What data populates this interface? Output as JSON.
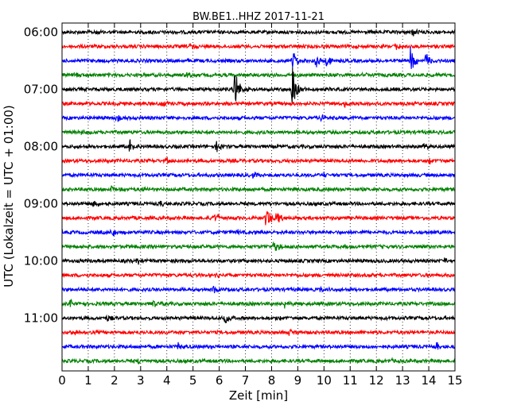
{
  "chart_data": {
    "type": "line",
    "title": "BW.BE1..HHZ 2017-11-21",
    "xlabel": "Zeit  [min]",
    "ylabel": "UTC (Lokalzeit = UTC + 01:00)",
    "xlim": [
      0,
      15
    ],
    "x_ticks": [
      "0",
      "1",
      "2",
      "3",
      "4",
      "5",
      "6",
      "7",
      "8",
      "9",
      "10",
      "11",
      "12",
      "13",
      "14",
      "15"
    ],
    "y_tick_labels": [
      "06:00",
      "07:00",
      "08:00",
      "09:00",
      "10:00",
      "11:00"
    ],
    "grid": "vertical dotted",
    "trace_colors": [
      "#000000",
      "#ff0000",
      "#0000ff",
      "#008000"
    ],
    "row_minutes": 15,
    "rows_per_tick": 4,
    "traces": [
      {
        "start": "06:00",
        "color": "#000000",
        "events": [
          {
            "t": 1.3,
            "amp": 0.25
          },
          {
            "t": 13.4,
            "amp": 0.35
          }
        ]
      },
      {
        "start": "06:15",
        "color": "#ff0000",
        "events": [
          {
            "t": 4.9,
            "amp": 0.25
          },
          {
            "t": 12.7,
            "amp": 0.3
          }
        ]
      },
      {
        "start": "06:30",
        "color": "#0000ff",
        "events": [
          {
            "t": 8.8,
            "amp": 1.0
          },
          {
            "t": 9.7,
            "amp": 0.5
          },
          {
            "t": 10.1,
            "amp": 0.6
          },
          {
            "t": 13.3,
            "amp": 1.2
          },
          {
            "t": 13.9,
            "amp": 0.8
          }
        ]
      },
      {
        "start": "06:45",
        "color": "#008000",
        "events": [
          {
            "t": 0.5,
            "amp": 0.25
          },
          {
            "t": 4.8,
            "amp": 0.3
          },
          {
            "t": 11.5,
            "amp": 0.25
          }
        ]
      },
      {
        "start": "07:00",
        "color": "#000000",
        "events": [
          {
            "t": 6.6,
            "amp": 1.8
          },
          {
            "t": 8.8,
            "amp": 2.0
          }
        ]
      },
      {
        "start": "07:15",
        "color": "#ff0000",
        "events": [
          {
            "t": 3.8,
            "amp": 0.25
          },
          {
            "t": 10.8,
            "amp": 0.25
          }
        ]
      },
      {
        "start": "07:30",
        "color": "#0000ff",
        "events": [
          {
            "t": 2.1,
            "amp": 0.3
          },
          {
            "t": 9.9,
            "amp": 0.3
          }
        ]
      },
      {
        "start": "07:45",
        "color": "#008000",
        "events": [
          {
            "t": 0.7,
            "amp": 0.2
          },
          {
            "t": 14.2,
            "amp": 0.2
          }
        ]
      },
      {
        "start": "08:00",
        "color": "#000000",
        "events": [
          {
            "t": 2.6,
            "amp": 0.9
          },
          {
            "t": 5.9,
            "amp": 0.45
          },
          {
            "t": 13.8,
            "amp": 0.3
          }
        ]
      },
      {
        "start": "08:15",
        "color": "#ff0000",
        "events": [
          {
            "t": 4.0,
            "amp": 0.25
          },
          {
            "t": 14.0,
            "amp": 0.35
          }
        ]
      },
      {
        "start": "08:30",
        "color": "#0000ff",
        "events": [
          {
            "t": 7.3,
            "amp": 0.25
          },
          {
            "t": 10.0,
            "amp": 0.25
          }
        ]
      },
      {
        "start": "08:45",
        "color": "#008000",
        "events": [
          {
            "t": 1.9,
            "amp": 0.4
          },
          {
            "t": 3.1,
            "amp": 0.3
          }
        ]
      },
      {
        "start": "09:00",
        "color": "#000000",
        "events": [
          {
            "t": 1.2,
            "amp": 0.45
          },
          {
            "t": 3.8,
            "amp": 0.3
          }
        ]
      },
      {
        "start": "09:15",
        "color": "#ff0000",
        "events": [
          {
            "t": 5.8,
            "amp": 0.6
          },
          {
            "t": 7.8,
            "amp": 1.1
          },
          {
            "t": 8.2,
            "amp": 0.6
          }
        ]
      },
      {
        "start": "09:30",
        "color": "#0000ff",
        "events": [
          {
            "t": 1.9,
            "amp": 0.45
          },
          {
            "t": 6.7,
            "amp": 0.2
          }
        ]
      },
      {
        "start": "09:45",
        "color": "#008000",
        "events": [
          {
            "t": 8.1,
            "amp": 0.55
          },
          {
            "t": 3.6,
            "amp": 0.2
          }
        ]
      },
      {
        "start": "10:00",
        "color": "#000000",
        "events": [
          {
            "t": 2.9,
            "amp": 0.3
          },
          {
            "t": 14.6,
            "amp": 0.3
          }
        ]
      },
      {
        "start": "10:15",
        "color": "#ff0000",
        "events": [
          {
            "t": 5.9,
            "amp": 0.2
          }
        ]
      },
      {
        "start": "10:30",
        "color": "#0000ff",
        "events": [
          {
            "t": 5.8,
            "amp": 0.4
          },
          {
            "t": 9.9,
            "amp": 0.3
          }
        ]
      },
      {
        "start": "10:45",
        "color": "#008000",
        "events": [
          {
            "t": 0.3,
            "amp": 0.35
          },
          {
            "t": 3.5,
            "amp": 0.35
          },
          {
            "t": 8.5,
            "amp": 0.3
          }
        ]
      },
      {
        "start": "11:00",
        "color": "#000000",
        "events": [
          {
            "t": 1.7,
            "amp": 0.3
          },
          {
            "t": 6.2,
            "amp": 0.95
          },
          {
            "t": 8.2,
            "amp": 0.25
          }
        ]
      },
      {
        "start": "11:15",
        "color": "#ff0000",
        "events": [
          {
            "t": 0.5,
            "amp": 0.25
          },
          {
            "t": 8.7,
            "amp": 0.3
          }
        ]
      },
      {
        "start": "11:30",
        "color": "#0000ff",
        "events": [
          {
            "t": 4.4,
            "amp": 0.35
          },
          {
            "t": 14.3,
            "amp": 0.3
          }
        ]
      },
      {
        "start": "11:45",
        "color": "#008000",
        "events": [
          {
            "t": 2.9,
            "amp": 0.2
          },
          {
            "t": 12.5,
            "amp": 0.2
          }
        ]
      }
    ]
  }
}
